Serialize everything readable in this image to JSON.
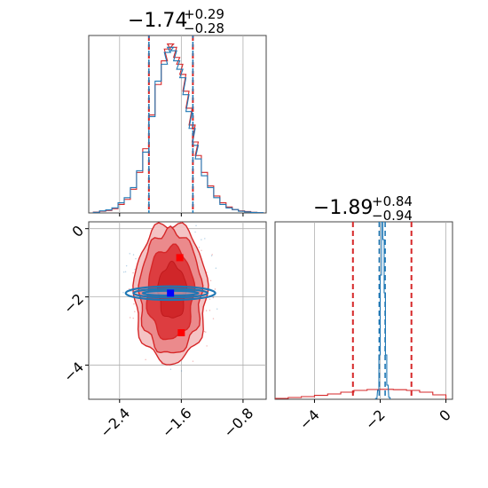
{
  "chart_data": [
    {
      "panel": "marginal-param-1",
      "type": "area",
      "title": {
        "value": "−1.74",
        "upper": "+0.29",
        "lower": "−0.28"
      },
      "xlim": [
        -2.8,
        -0.5
      ],
      "quantile_lines": {
        "red": [
          -2.02,
          -1.45
        ],
        "blue": [
          -2.02,
          -1.45
        ]
      },
      "grid": true,
      "series": [
        {
          "color": "#d62728",
          "x": [
            -2.7,
            -2.62,
            -2.54,
            -2.46,
            -2.38,
            -2.3,
            -2.22,
            -2.14,
            -2.06,
            -1.98,
            -1.9,
            -1.82,
            -1.78,
            -1.74,
            -1.7,
            -1.66,
            -1.62,
            -1.58,
            -1.54,
            -1.5,
            -1.46,
            -1.42,
            -1.38,
            -1.3,
            -1.22,
            -1.14,
            -1.06,
            -0.98,
            -0.9,
            -0.82,
            -0.74,
            -0.66,
            -0.58
          ],
          "y": [
            0.5,
            1,
            1.5,
            2.5,
            5,
            8,
            14,
            24,
            38,
            58,
            76,
            90,
            97,
            100,
            98,
            92,
            88,
            82,
            72,
            62,
            52,
            42,
            34,
            24,
            16,
            10,
            6,
            3.5,
            2,
            1.2,
            0.8,
            0.4,
            0.2
          ]
        },
        {
          "color": "#1f77b4",
          "x": [
            -2.7,
            -2.62,
            -2.54,
            -2.46,
            -2.38,
            -2.3,
            -2.22,
            -2.14,
            -2.06,
            -1.98,
            -1.9,
            -1.82,
            -1.78,
            -1.74,
            -1.7,
            -1.66,
            -1.62,
            -1.58,
            -1.54,
            -1.5,
            -1.46,
            -1.42,
            -1.38,
            -1.3,
            -1.22,
            -1.14,
            -1.06,
            -0.98,
            -0.9,
            -0.82,
            -0.74,
            -0.66,
            -0.58
          ],
          "y": [
            0.4,
            1.2,
            1.8,
            3,
            6,
            9,
            15,
            25,
            36,
            57,
            78,
            88,
            95,
            98,
            96,
            90,
            85,
            80,
            70,
            60,
            50,
            40,
            32,
            22,
            15,
            9,
            5,
            3,
            2,
            1,
            0.6,
            0.3,
            0.2
          ]
        }
      ]
    },
    {
      "panel": "marginal-param-2",
      "type": "area",
      "title": {
        "value": "−1.89",
        "upper": "+0.84",
        "lower": "−0.94"
      },
      "xlim": [
        -5.2,
        0.2
      ],
      "x_ticks": [
        "−4",
        "−2",
        "0"
      ],
      "quantile_lines": {
        "red": [
          -2.83,
          -1.05
        ],
        "blue": [
          -2.03,
          -1.85
        ]
      },
      "grid": true,
      "series": [
        {
          "color": "#d62728",
          "x": [
            -5.0,
            -4.6,
            -4.2,
            -3.8,
            -3.4,
            -3.0,
            -2.6,
            -2.2,
            -1.8,
            -1.4,
            -1.0,
            -0.6,
            -0.2
          ],
          "y": [
            0.5,
            1,
            1.5,
            2.2,
            3,
            4,
            5,
            5.5,
            5.6,
            5.4,
            5,
            4,
            2.5
          ]
        },
        {
          "color": "#1f77b4",
          "x": [
            -2.12,
            -2.06,
            -2.02,
            -1.98,
            -1.94,
            -1.9,
            -1.86,
            -1.82,
            -1.78,
            -1.72
          ],
          "y": [
            0.5,
            5,
            25,
            70,
            100,
            90,
            60,
            25,
            8,
            1
          ]
        }
      ]
    },
    {
      "panel": "joint-param-1-vs-param-2",
      "type": "scatter",
      "xlim": [
        -2.8,
        -0.5
      ],
      "ylim": [
        -5.0,
        0.2
      ],
      "x_ticks": [
        "−2.4",
        "−1.6",
        "−0.8"
      ],
      "y_ticks": [
        "0",
        "−2",
        "−4"
      ],
      "grid": true,
      "series": [
        {
          "name": "",
          "color": "#d62728",
          "kind": "density-contours",
          "center": [
            -1.74,
            -1.89
          ]
        },
        {
          "name": "",
          "color": "#1f77b4",
          "kind": "density-contours",
          "center": [
            -1.74,
            -1.89
          ]
        }
      ],
      "markers": [
        {
          "color": "#ff0000",
          "x": [
            -1.62,
            -1.6
          ],
          "y": [
            -0.85,
            -3.05
          ]
        },
        {
          "color": "#0000ff",
          "x": [
            -1.74
          ],
          "y": [
            -1.89
          ]
        }
      ]
    }
  ]
}
